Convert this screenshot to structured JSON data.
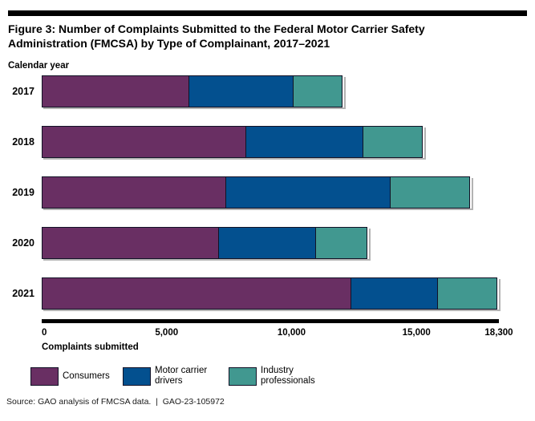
{
  "source_note": "Source: GAO analysis of FMCSA data.  |  GAO-23-105972",
  "colors": {
    "consumers": "#692F63",
    "motor_carrier_drivers": "#03508F",
    "industry_professionals": "#419890",
    "bar_outline": "#121226",
    "bar_shadow": "#b3b3b3",
    "axis": "#000000",
    "rule": "#000000"
  },
  "chart_data": {
    "type": "bar",
    "orientation": "horizontal",
    "stacked": true,
    "title": "Figure 3: Number of Complaints Submitted to the Federal Motor Carrier Safety Administration (FMCSA) by Type of Complainant, 2017–2021",
    "y_axis_label": "Calendar year",
    "xlabel": "Complaints submitted",
    "categories": [
      "2017",
      "2018",
      "2019",
      "2020",
      "2021"
    ],
    "series": [
      {
        "name": "Consumers",
        "color": "#692F63",
        "values": [
          5900,
          8200,
          7400,
          7100,
          12400
        ]
      },
      {
        "name": "Motor carrier drivers",
        "color": "#03508F",
        "values": [
          4200,
          4700,
          6600,
          3900,
          3500
        ]
      },
      {
        "name": "Industry professionals",
        "color": "#419890",
        "values": [
          2000,
          2400,
          3200,
          2100,
          2400
        ]
      }
    ],
    "totals": [
      12100,
      15300,
      17200,
      13100,
      18300
    ],
    "xlim": [
      0,
      18300
    ],
    "xticks": [
      {
        "value": 0,
        "label": "0"
      },
      {
        "value": 5000,
        "label": "5,000"
      },
      {
        "value": 10000,
        "label": "10,000"
      },
      {
        "value": 15000,
        "label": "15,000"
      },
      {
        "value": 18300,
        "label": "18,300"
      }
    ],
    "grid": false,
    "legend_position": "bottom"
  }
}
